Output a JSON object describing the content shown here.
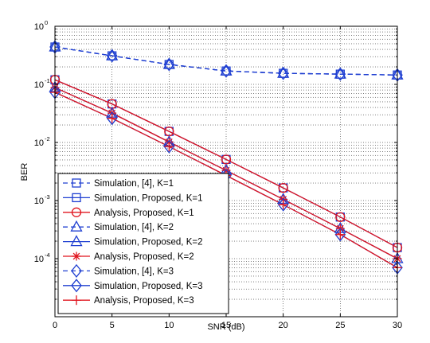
{
  "chart_data": {
    "type": "line",
    "xlabel": "SNR (dB)",
    "ylabel": "BER",
    "xlim": [
      0,
      30
    ],
    "ylim": [
      1e-05,
      1
    ],
    "y_scale": "log",
    "grid": "on (major and minor, dotted)",
    "legend_position": "bottom-left",
    "x_ticks": [
      0,
      5,
      10,
      15,
      20,
      25,
      30
    ],
    "y_ticks": [
      {
        "value": 1,
        "base": "10",
        "exp": "0"
      },
      {
        "value": 0.1,
        "base": "10",
        "exp": "-1"
      },
      {
        "value": 0.01,
        "base": "10",
        "exp": "-2"
      },
      {
        "value": 0.001,
        "base": "10",
        "exp": "-3"
      },
      {
        "value": 0.0001,
        "base": "10",
        "exp": "-4"
      }
    ],
    "x": [
      0,
      5,
      10,
      15,
      20,
      25,
      30
    ],
    "series": [
      {
        "name": "Simulation, [4], K=1",
        "color": "#1f3fd1",
        "dash": "dashed",
        "marker": "square",
        "values": [
          0.44,
          0.31,
          0.22,
          0.17,
          0.155,
          0.15,
          0.145
        ]
      },
      {
        "name": "Simulation, Proposed, K=1",
        "color": "#1f3fd1",
        "dash": "solid",
        "marker": "square",
        "values": [
          0.12,
          0.046,
          0.0155,
          0.0051,
          0.00165,
          0.00052,
          0.000155
        ]
      },
      {
        "name": "Analysis, Proposed, K=1",
        "color": "#e0141e",
        "dash": "solid",
        "marker": "circle",
        "values": [
          0.12,
          0.046,
          0.0155,
          0.0051,
          0.00165,
          0.00052,
          0.000155
        ]
      },
      {
        "name": "Simulation, [4], K=2",
        "color": "#1f3fd1",
        "dash": "dashed",
        "marker": "triangle",
        "values": [
          0.44,
          0.31,
          0.22,
          0.17,
          0.155,
          0.15,
          0.145
        ]
      },
      {
        "name": "Simulation, Proposed, K=2",
        "color": "#1f3fd1",
        "dash": "solid",
        "marker": "triangle",
        "values": [
          0.088,
          0.032,
          0.0102,
          0.0033,
          0.00105,
          0.00033,
          0.0001
        ]
      },
      {
        "name": "Analysis, Proposed, K=2",
        "color": "#e0141e",
        "dash": "solid",
        "marker": "asterisk",
        "values": [
          0.088,
          0.032,
          0.0102,
          0.0033,
          0.00105,
          0.00033,
          0.0001
        ]
      },
      {
        "name": "Simulation, [4], K=3",
        "color": "#1f3fd1",
        "dash": "dashed",
        "marker": "diamond",
        "values": [
          0.44,
          0.31,
          0.22,
          0.17,
          0.155,
          0.15,
          0.145
        ]
      },
      {
        "name": "Simulation, Proposed, K=3",
        "color": "#1f3fd1",
        "dash": "solid",
        "marker": "diamond",
        "values": [
          0.073,
          0.026,
          0.0085,
          0.0027,
          0.00085,
          0.00026,
          7e-05
        ]
      },
      {
        "name": "Analysis, Proposed, K=3",
        "color": "#e0141e",
        "dash": "solid",
        "marker": "plus",
        "values": [
          0.073,
          0.026,
          0.0085,
          0.0027,
          0.00085,
          0.00026,
          7e-05
        ]
      }
    ]
  }
}
